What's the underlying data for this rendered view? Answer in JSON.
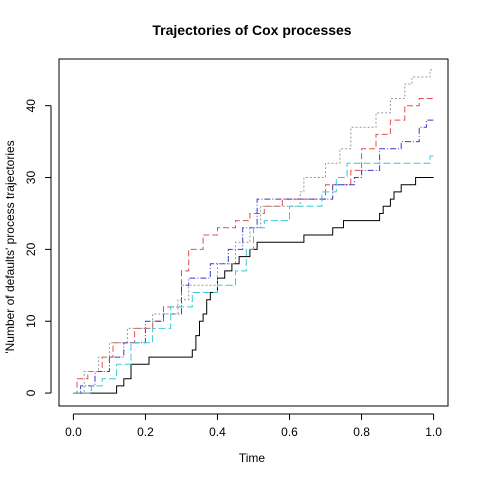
{
  "chart_data": {
    "type": "line",
    "title": "Trajectories of Cox processes",
    "xlabel": "Time",
    "ylabel": "'Number of defaults' process trajectories",
    "xlim": [
      -0.04,
      1.04
    ],
    "ylim": [
      -1.8,
      46.5
    ],
    "x_ticks": [
      0.0,
      0.2,
      0.4,
      0.6,
      0.8,
      1.0
    ],
    "x_tick_labels": [
      "0.0",
      "0.2",
      "0.4",
      "0.6",
      "0.8",
      "1.0"
    ],
    "y_ticks": [
      0,
      10,
      20,
      30,
      40
    ],
    "y_tick_labels": [
      "0",
      "10",
      "20",
      "30",
      "40"
    ],
    "grid": false,
    "series": [
      {
        "color": "#000000",
        "dash": "",
        "points": [
          [
            0.0,
            0
          ],
          [
            0.12,
            0
          ],
          [
            0.12,
            1
          ],
          [
            0.14,
            1
          ],
          [
            0.14,
            2
          ],
          [
            0.16,
            2
          ],
          [
            0.16,
            4
          ],
          [
            0.21,
            4
          ],
          [
            0.21,
            5
          ],
          [
            0.33,
            5
          ],
          [
            0.33,
            6
          ],
          [
            0.34,
            6
          ],
          [
            0.34,
            8
          ],
          [
            0.35,
            8
          ],
          [
            0.35,
            10
          ],
          [
            0.36,
            10
          ],
          [
            0.36,
            11
          ],
          [
            0.37,
            11
          ],
          [
            0.37,
            13
          ],
          [
            0.38,
            13
          ],
          [
            0.38,
            14
          ],
          [
            0.4,
            14
          ],
          [
            0.4,
            16
          ],
          [
            0.42,
            16
          ],
          [
            0.42,
            17
          ],
          [
            0.44,
            17
          ],
          [
            0.44,
            18
          ],
          [
            0.46,
            18
          ],
          [
            0.46,
            19
          ],
          [
            0.49,
            19
          ],
          [
            0.49,
            20
          ],
          [
            0.51,
            20
          ],
          [
            0.51,
            21
          ],
          [
            0.64,
            21
          ],
          [
            0.64,
            22
          ],
          [
            0.72,
            22
          ],
          [
            0.72,
            23
          ],
          [
            0.75,
            23
          ],
          [
            0.75,
            24
          ],
          [
            0.85,
            24
          ],
          [
            0.85,
            25
          ],
          [
            0.86,
            25
          ],
          [
            0.86,
            26
          ],
          [
            0.88,
            26
          ],
          [
            0.88,
            27
          ],
          [
            0.89,
            27
          ],
          [
            0.89,
            28
          ],
          [
            0.91,
            28
          ],
          [
            0.91,
            29
          ],
          [
            0.95,
            29
          ],
          [
            0.95,
            30
          ],
          [
            1.0,
            30
          ]
        ]
      },
      {
        "color": "#e05050",
        "dash": "6,3",
        "points": [
          [
            0.0,
            0
          ],
          [
            0.01,
            0
          ],
          [
            0.01,
            2
          ],
          [
            0.04,
            2
          ],
          [
            0.04,
            3
          ],
          [
            0.08,
            3
          ],
          [
            0.08,
            5
          ],
          [
            0.11,
            5
          ],
          [
            0.11,
            7
          ],
          [
            0.17,
            7
          ],
          [
            0.17,
            9
          ],
          [
            0.22,
            9
          ],
          [
            0.22,
            10
          ],
          [
            0.25,
            10
          ],
          [
            0.25,
            12
          ],
          [
            0.3,
            12
          ],
          [
            0.3,
            17
          ],
          [
            0.32,
            17
          ],
          [
            0.32,
            20
          ],
          [
            0.36,
            20
          ],
          [
            0.36,
            22
          ],
          [
            0.4,
            22
          ],
          [
            0.4,
            23
          ],
          [
            0.45,
            23
          ],
          [
            0.45,
            24
          ],
          [
            0.49,
            24
          ],
          [
            0.49,
            25
          ],
          [
            0.53,
            25
          ],
          [
            0.53,
            26
          ],
          [
            0.58,
            26
          ],
          [
            0.58,
            27
          ],
          [
            0.7,
            27
          ],
          [
            0.7,
            29
          ],
          [
            0.77,
            29
          ],
          [
            0.77,
            31
          ],
          [
            0.8,
            31
          ],
          [
            0.8,
            34
          ],
          [
            0.84,
            34
          ],
          [
            0.84,
            36
          ],
          [
            0.88,
            36
          ],
          [
            0.88,
            38
          ],
          [
            0.92,
            38
          ],
          [
            0.92,
            40
          ],
          [
            0.96,
            40
          ],
          [
            0.96,
            41
          ],
          [
            1.0,
            41
          ]
        ]
      },
      {
        "color": "#3b3bcc",
        "dash": "6,2,1,2",
        "points": [
          [
            0.0,
            0
          ],
          [
            0.02,
            0
          ],
          [
            0.02,
            1
          ],
          [
            0.06,
            1
          ],
          [
            0.06,
            3
          ],
          [
            0.1,
            3
          ],
          [
            0.1,
            5
          ],
          [
            0.14,
            5
          ],
          [
            0.14,
            7
          ],
          [
            0.2,
            7
          ],
          [
            0.2,
            10
          ],
          [
            0.25,
            10
          ],
          [
            0.25,
            11
          ],
          [
            0.3,
            11
          ],
          [
            0.3,
            15
          ],
          [
            0.32,
            15
          ],
          [
            0.32,
            16
          ],
          [
            0.38,
            16
          ],
          [
            0.38,
            18
          ],
          [
            0.43,
            18
          ],
          [
            0.43,
            20
          ],
          [
            0.47,
            20
          ],
          [
            0.47,
            23
          ],
          [
            0.51,
            23
          ],
          [
            0.51,
            27
          ],
          [
            0.59,
            27
          ],
          [
            0.59,
            27
          ],
          [
            0.72,
            27
          ],
          [
            0.72,
            29
          ],
          [
            0.78,
            29
          ],
          [
            0.78,
            30
          ],
          [
            0.8,
            30
          ],
          [
            0.8,
            31
          ],
          [
            0.85,
            31
          ],
          [
            0.85,
            34
          ],
          [
            0.91,
            34
          ],
          [
            0.91,
            35
          ],
          [
            0.96,
            35
          ],
          [
            0.96,
            37
          ],
          [
            0.98,
            37
          ],
          [
            0.98,
            38
          ],
          [
            1.0,
            38
          ]
        ]
      },
      {
        "color": "#999999",
        "dash": "2,2",
        "points": [
          [
            0.0,
            0
          ],
          [
            0.03,
            0
          ],
          [
            0.03,
            3
          ],
          [
            0.07,
            3
          ],
          [
            0.07,
            5
          ],
          [
            0.1,
            5
          ],
          [
            0.1,
            7
          ],
          [
            0.15,
            7
          ],
          [
            0.15,
            9
          ],
          [
            0.22,
            9
          ],
          [
            0.22,
            11
          ],
          [
            0.29,
            11
          ],
          [
            0.29,
            13
          ],
          [
            0.32,
            13
          ],
          [
            0.32,
            15
          ],
          [
            0.4,
            15
          ],
          [
            0.4,
            18
          ],
          [
            0.45,
            18
          ],
          [
            0.45,
            21
          ],
          [
            0.49,
            21
          ],
          [
            0.49,
            23
          ],
          [
            0.52,
            23
          ],
          [
            0.52,
            26
          ],
          [
            0.63,
            26
          ],
          [
            0.63,
            28
          ],
          [
            0.64,
            28
          ],
          [
            0.64,
            30
          ],
          [
            0.7,
            30
          ],
          [
            0.7,
            32
          ],
          [
            0.74,
            32
          ],
          [
            0.74,
            34
          ],
          [
            0.77,
            34
          ],
          [
            0.77,
            37
          ],
          [
            0.84,
            37
          ],
          [
            0.84,
            39
          ],
          [
            0.88,
            39
          ],
          [
            0.88,
            41
          ],
          [
            0.92,
            41
          ],
          [
            0.92,
            43
          ],
          [
            0.94,
            43
          ],
          [
            0.94,
            44
          ],
          [
            0.99,
            44
          ],
          [
            0.99,
            45
          ],
          [
            1.0,
            45
          ]
        ]
      },
      {
        "color": "#33ccdd",
        "dash": "7,3",
        "points": [
          [
            0.0,
            0
          ],
          [
            0.05,
            0
          ],
          [
            0.05,
            1
          ],
          [
            0.08,
            1
          ],
          [
            0.08,
            2
          ],
          [
            0.12,
            2
          ],
          [
            0.12,
            4
          ],
          [
            0.16,
            4
          ],
          [
            0.16,
            7
          ],
          [
            0.22,
            7
          ],
          [
            0.22,
            9
          ],
          [
            0.27,
            9
          ],
          [
            0.27,
            12
          ],
          [
            0.33,
            12
          ],
          [
            0.33,
            14
          ],
          [
            0.4,
            14
          ],
          [
            0.4,
            15
          ],
          [
            0.45,
            15
          ],
          [
            0.45,
            17
          ],
          [
            0.48,
            17
          ],
          [
            0.48,
            20
          ],
          [
            0.5,
            20
          ],
          [
            0.5,
            23
          ],
          [
            0.53,
            23
          ],
          [
            0.53,
            24
          ],
          [
            0.6,
            24
          ],
          [
            0.6,
            26
          ],
          [
            0.69,
            26
          ],
          [
            0.69,
            28
          ],
          [
            0.73,
            28
          ],
          [
            0.73,
            30
          ],
          [
            0.76,
            30
          ],
          [
            0.76,
            32
          ],
          [
            0.99,
            32
          ],
          [
            0.99,
            33
          ],
          [
            1.0,
            33
          ]
        ]
      }
    ]
  }
}
